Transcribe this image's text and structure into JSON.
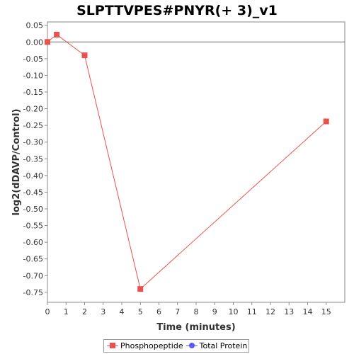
{
  "chart_data": {
    "type": "line",
    "title": "SLPTTVPES#PNYR(+ 3)_v1",
    "xlabel": "Time (minutes)",
    "ylabel": "log2(dDAVP/Control)",
    "xlim": [
      0,
      16
    ],
    "ylim": [
      -0.78,
      0.06
    ],
    "x_ticks": [
      "0",
      "1",
      "2",
      "3",
      "4",
      "5",
      "6",
      "7",
      "8",
      "9",
      "10",
      "11",
      "12",
      "13",
      "14",
      "15"
    ],
    "y_ticks": [
      "0.05",
      "0.00",
      "-0.05",
      "-0.10",
      "-0.15",
      "-0.20",
      "-0.25",
      "-0.30",
      "-0.35",
      "-0.40",
      "-0.45",
      "-0.50",
      "-0.55",
      "-0.60",
      "-0.65",
      "-0.70",
      "-0.75"
    ],
    "zero_line": true,
    "grid": false,
    "legend_position": "bottom",
    "series": [
      {
        "name": "Phosphopeptide",
        "color": "#e8514f",
        "marker": "square",
        "x": [
          0,
          0.5,
          2,
          5,
          15
        ],
        "y": [
          0.0,
          0.022,
          -0.04,
          -0.74,
          -0.238
        ]
      },
      {
        "name": "Total Protein",
        "color": "#5b5bf0",
        "marker": "circle",
        "x": [],
        "y": []
      }
    ]
  }
}
